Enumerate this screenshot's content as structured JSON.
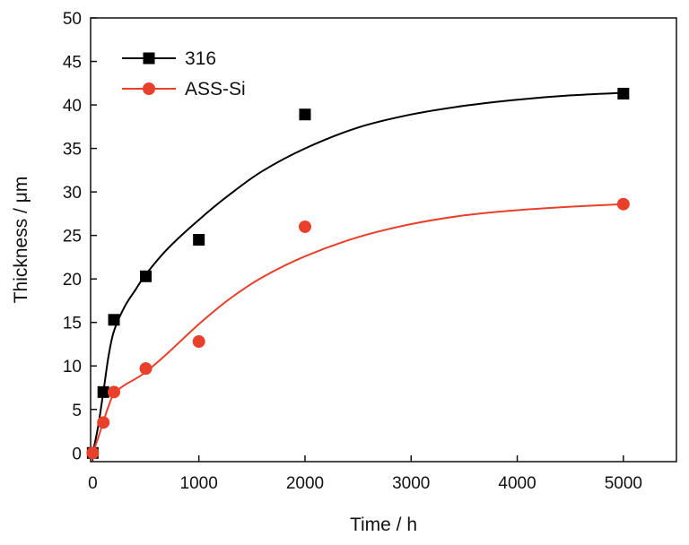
{
  "chart_data": {
    "type": "scatter",
    "title": "",
    "xlabel": "Time / h",
    "ylabel": "Thickness / μm",
    "xlim": [
      -20,
      5500
    ],
    "ylim": [
      -1,
      50
    ],
    "x_ticks": [
      0,
      1000,
      2000,
      3000,
      4000,
      5000
    ],
    "y_ticks": [
      0,
      5,
      10,
      15,
      20,
      25,
      30,
      35,
      40,
      45,
      50
    ],
    "legend_position": "top-left",
    "series": [
      {
        "name": "316",
        "marker": "square",
        "color": "#000000",
        "points": [
          [
            0,
            0
          ],
          [
            100,
            7.0
          ],
          [
            200,
            15.3
          ],
          [
            500,
            20.3
          ],
          [
            1000,
            24.5
          ],
          [
            2000,
            38.9
          ],
          [
            5000,
            41.3
          ]
        ],
        "fit": [
          [
            0,
            0
          ],
          [
            50,
            3.0
          ],
          [
            100,
            7.0
          ],
          [
            150,
            11.2
          ],
          [
            200,
            14.0
          ],
          [
            300,
            16.8
          ],
          [
            400,
            18.7
          ],
          [
            500,
            20.5
          ],
          [
            700,
            23.4
          ],
          [
            1000,
            26.8
          ],
          [
            1300,
            29.8
          ],
          [
            1600,
            32.4
          ],
          [
            2000,
            35.0
          ],
          [
            2500,
            37.4
          ],
          [
            3000,
            38.9
          ],
          [
            3500,
            39.9
          ],
          [
            4000,
            40.6
          ],
          [
            4500,
            41.1
          ],
          [
            5000,
            41.4
          ]
        ]
      },
      {
        "name": "ASS-Si",
        "marker": "circle",
        "color": "#e8402a",
        "points": [
          [
            0,
            0
          ],
          [
            100,
            3.5
          ],
          [
            200,
            7.0
          ],
          [
            500,
            9.7
          ],
          [
            1000,
            12.8
          ],
          [
            2000,
            26.0
          ],
          [
            5000,
            28.6
          ]
        ],
        "fit": [
          [
            0,
            0
          ],
          [
            50,
            1.7
          ],
          [
            100,
            3.6
          ],
          [
            150,
            5.4
          ],
          [
            200,
            6.8
          ],
          [
            300,
            7.8
          ],
          [
            400,
            8.5
          ],
          [
            500,
            9.3
          ],
          [
            700,
            11.4
          ],
          [
            1000,
            14.8
          ],
          [
            1300,
            17.8
          ],
          [
            1600,
            20.2
          ],
          [
            2000,
            22.6
          ],
          [
            2500,
            24.8
          ],
          [
            3000,
            26.3
          ],
          [
            3500,
            27.3
          ],
          [
            4000,
            27.9
          ],
          [
            4500,
            28.3
          ],
          [
            5000,
            28.6
          ]
        ]
      }
    ]
  }
}
